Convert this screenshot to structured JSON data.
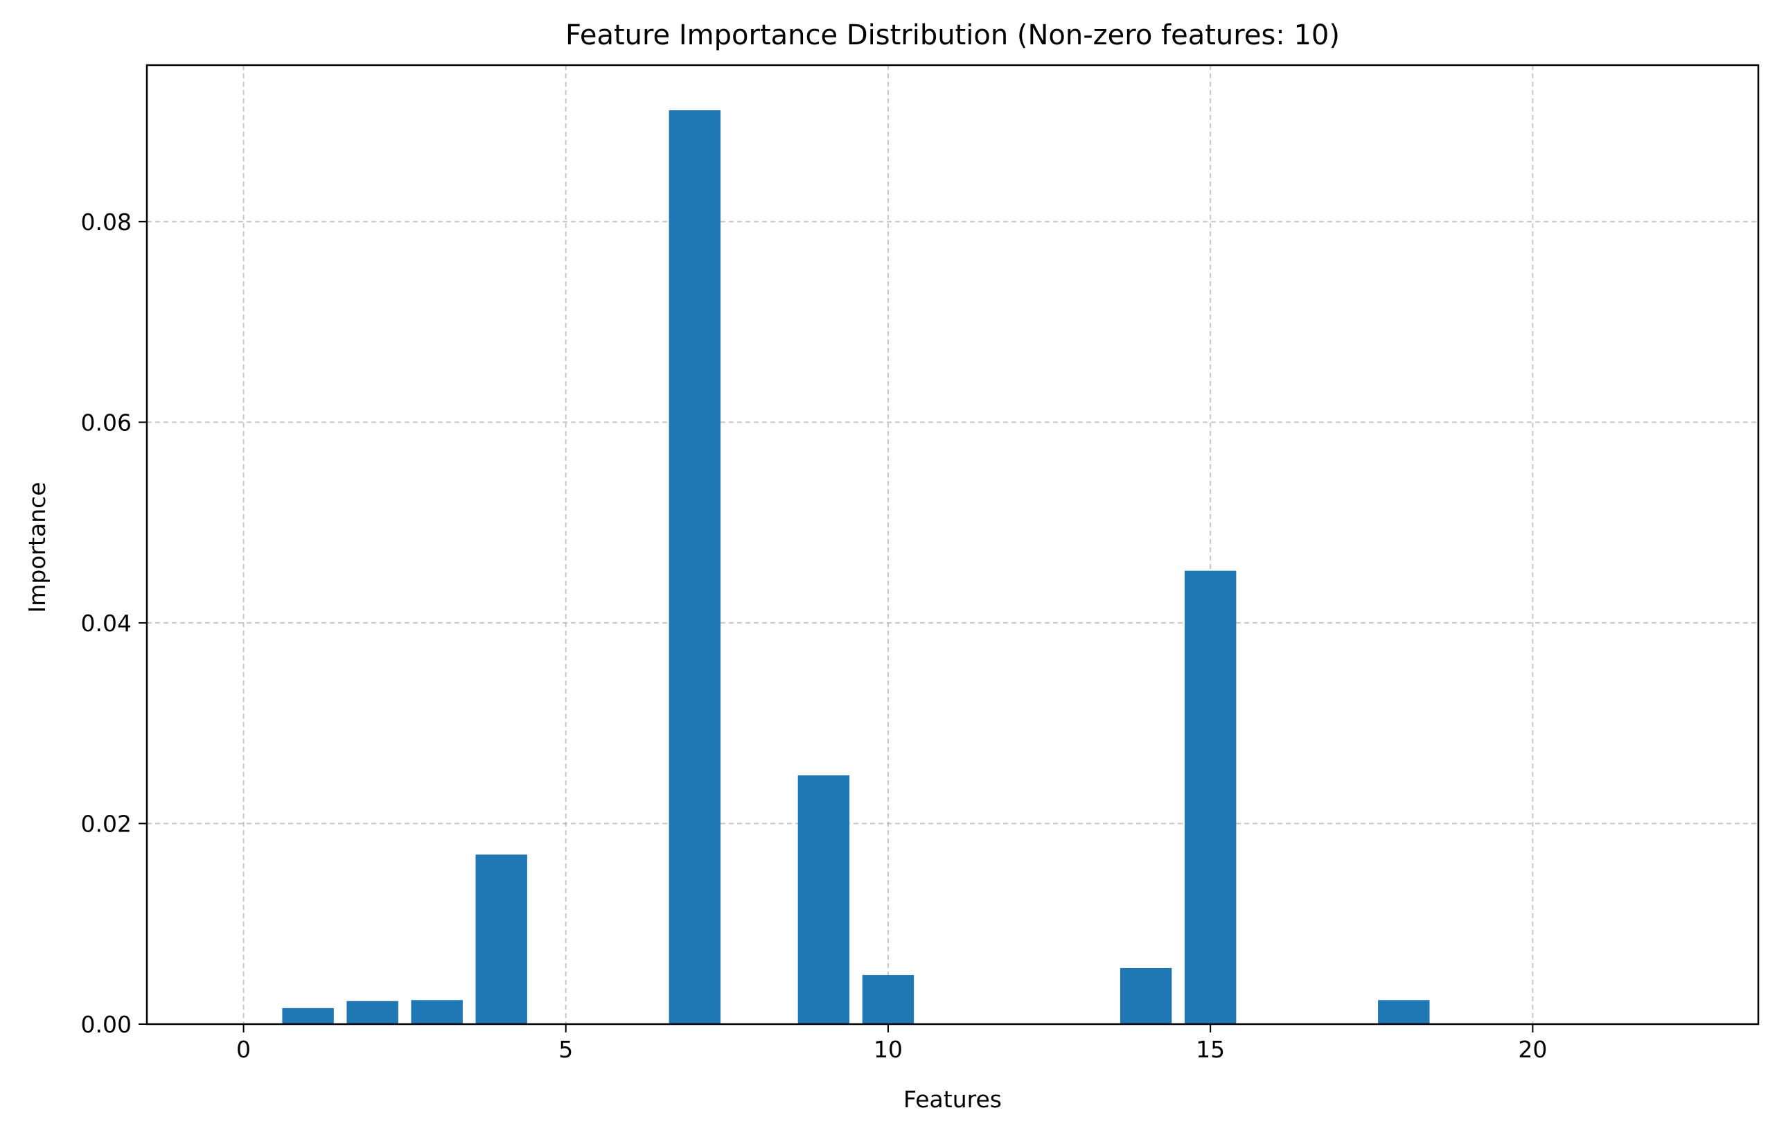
{
  "chart_data": {
    "type": "bar",
    "title": "Feature Importance Distribution (Non-zero features: 10)",
    "xlabel": "Features",
    "ylabel": "Importance",
    "x": [
      0,
      1,
      2,
      3,
      4,
      5,
      6,
      7,
      8,
      9,
      10,
      11,
      12,
      13,
      14,
      15,
      16,
      17,
      18,
      19,
      20,
      21,
      22
    ],
    "values": [
      0,
      0.0016,
      0.0023,
      0.0024,
      0.0169,
      0,
      0,
      0.0911,
      0,
      0.0248,
      0.0049,
      0,
      0,
      0,
      0.0056,
      0.0452,
      0,
      0,
      0.0024,
      0,
      0,
      0,
      0
    ],
    "xlim": [
      -1.5,
      23.5
    ],
    "ylim": [
      0,
      0.0956
    ],
    "xticks": [
      0,
      5,
      10,
      15,
      20
    ],
    "xtick_labels": [
      "0",
      "5",
      "10",
      "15",
      "20"
    ],
    "yticks": [
      0,
      0.02,
      0.04,
      0.06,
      0.08
    ],
    "ytick_labels": [
      "0.00",
      "0.02",
      "0.04",
      "0.06",
      "0.08"
    ],
    "grid": true,
    "bar_color": "#1f77b4",
    "grid_color": "#b0b0b0"
  }
}
